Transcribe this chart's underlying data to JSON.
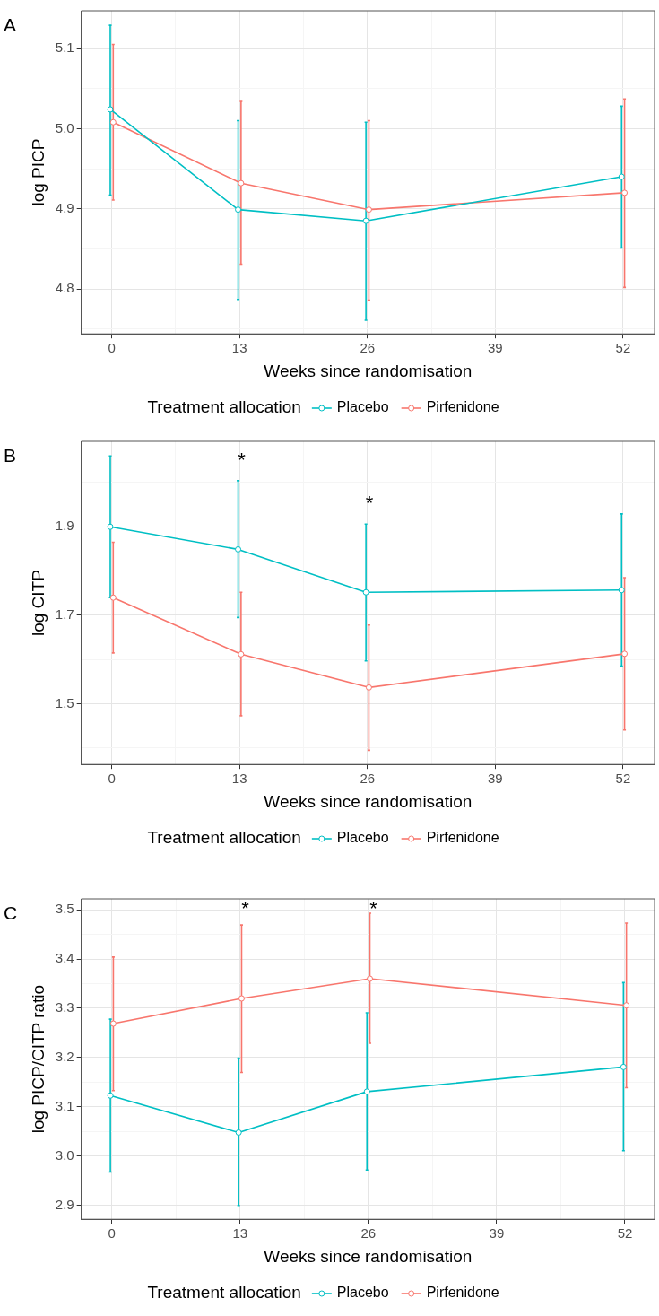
{
  "chart_data": [
    {
      "type": "line",
      "title": "A",
      "xlabel": "Weeks since randomisation",
      "ylabel": "log PICP",
      "legend_title": "Treatment allocation",
      "legend": "bottom",
      "marker": "circle",
      "grid": true,
      "xlim": [
        -3.1,
        55.2
      ],
      "xticks": [
        0,
        {
          "value": 6.5,
          "label": null
        },
        13,
        {
          "value": 19.5,
          "label": null
        },
        26,
        {
          "value": 32.5,
          "label": null
        },
        39,
        {
          "value": 45.5,
          "label": null
        },
        52
      ],
      "ylim": [
        4.744,
        5.147
      ],
      "yticks": [
        {
          "value": 4.75,
          "label": null
        },
        4.8,
        {
          "value": 4.85,
          "label": null
        },
        4.9,
        {
          "value": 4.95,
          "label": null
        },
        {
          "value": 5,
          "label": "5.0"
        },
        {
          "value": 5.05,
          "label": null
        },
        5.1
      ],
      "series": [
        {
          "name": "Placebo",
          "color": "#00bfc4",
          "x": [
            -0.15,
            12.85,
            25.85,
            51.85
          ],
          "values": [
            5.024,
            4.899,
            4.885,
            4.94
          ],
          "errors": [
            [
              4.917,
              5.129
            ],
            [
              4.787,
              5.01
            ],
            [
              4.761,
              5.008
            ],
            [
              4.851,
              5.028
            ]
          ]
        },
        {
          "name": "Pirfenidone",
          "color": "#f8766d",
          "x": [
            0.15,
            13.15,
            26.15,
            52.15
          ],
          "values": [
            5.008,
            4.932,
            4.899,
            4.92
          ],
          "errors": [
            [
              4.911,
              5.105
            ],
            [
              4.831,
              5.034
            ],
            [
              4.786,
              5.01
            ],
            [
              4.802,
              5.037
            ]
          ]
        }
      ]
    },
    {
      "type": "line",
      "title": "B",
      "xlabel": "Weeks since randomisation",
      "ylabel": "log CITP",
      "legend_title": "Treatment allocation",
      "legend": "bottom",
      "marker": "circle",
      "grid": true,
      "xlim": [
        -3.1,
        55.2
      ],
      "xticks": [
        0,
        {
          "value": 6.5,
          "label": null
        },
        13,
        {
          "value": 19.5,
          "label": null
        },
        26,
        {
          "value": 32.5,
          "label": null
        },
        39,
        {
          "value": 45.5,
          "label": null
        },
        52
      ],
      "ylim": [
        1.363,
        2.093
      ],
      "yticks": [
        {
          "value": 1.4,
          "label": null
        },
        1.5,
        {
          "value": 1.6,
          "label": null
        },
        1.7,
        {
          "value": 1.8,
          "label": null
        },
        1.9,
        {
          "value": 2,
          "label": null
        }
      ],
      "annotations": [
        {
          "text": "*",
          "x": 12.85,
          "y": 2.004
        },
        {
          "text": "*",
          "x": 25.85,
          "y": 1.906
        }
      ],
      "series": [
        {
          "name": "Placebo",
          "color": "#00bfc4",
          "x": [
            -0.15,
            12.85,
            25.85,
            51.85
          ],
          "values": [
            1.9,
            1.849,
            1.752,
            1.757
          ],
          "errors": [
            [
              1.74,
              2.06
            ],
            [
              1.695,
              2.004
            ],
            [
              1.597,
              1.906
            ],
            [
              1.585,
              1.929
            ]
          ]
        },
        {
          "name": "Pirfenidone",
          "color": "#f8766d",
          "x": [
            0.15,
            13.15,
            26.15,
            52.15
          ],
          "values": [
            1.74,
            1.612,
            1.537,
            1.613
          ],
          "errors": [
            [
              1.615,
              1.865
            ],
            [
              1.473,
              1.752
            ],
            [
              1.395,
              1.678
            ],
            [
              1.441,
              1.785
            ]
          ]
        }
      ]
    },
    {
      "type": "line",
      "title": "C",
      "xlabel": "Weeks since randomisation",
      "ylabel": "log PICP/CITP ratio",
      "legend_title": "Treatment allocation",
      "legend": "bottom",
      "marker": "circle",
      "grid": true,
      "xlim": [
        -3.1,
        55.0
      ],
      "xticks": [
        0,
        {
          "value": 6.5,
          "label": null
        },
        13,
        {
          "value": 19.5,
          "label": null
        },
        26,
        {
          "value": 32.5,
          "label": null
        },
        39,
        {
          "value": 45.5,
          "label": null
        },
        52
      ],
      "ylim": [
        2.872,
        3.522
      ],
      "yticks": [
        2.9,
        {
          "value": 2.95,
          "label": null
        },
        {
          "value": 3,
          "label": "3.0"
        },
        {
          "value": 3.05,
          "label": null
        },
        3.1,
        {
          "value": 3.15,
          "label": null
        },
        3.2,
        {
          "value": 3.25,
          "label": null
        },
        3.3,
        {
          "value": 3.35,
          "label": null
        },
        3.4,
        {
          "value": 3.45,
          "label": null
        },
        3.5
      ],
      "annotations": [
        {
          "text": "*",
          "x": 13.15,
          "y": 3.469
        },
        {
          "text": "*",
          "x": 26.15,
          "y": 3.493
        }
      ],
      "series": [
        {
          "name": "Placebo",
          "color": "#00bfc4",
          "x": [
            -0.15,
            12.85,
            25.85,
            51.85
          ],
          "values": [
            3.123,
            3.048,
            3.131,
            3.181
          ],
          "errors": [
            [
              2.968,
              3.278
            ],
            [
              2.9,
              3.199
            ],
            [
              2.972,
              3.291
            ],
            [
              3.011,
              3.352
            ]
          ]
        },
        {
          "name": "Pirfenidone",
          "color": "#f8766d",
          "x": [
            0.15,
            13.15,
            26.15,
            52.15
          ],
          "values": [
            3.269,
            3.32,
            3.36,
            3.306
          ],
          "errors": [
            [
              3.133,
              3.404
            ],
            [
              3.17,
              3.469
            ],
            [
              3.229,
              3.493
            ],
            [
              3.139,
              3.473
            ]
          ]
        }
      ]
    }
  ]
}
